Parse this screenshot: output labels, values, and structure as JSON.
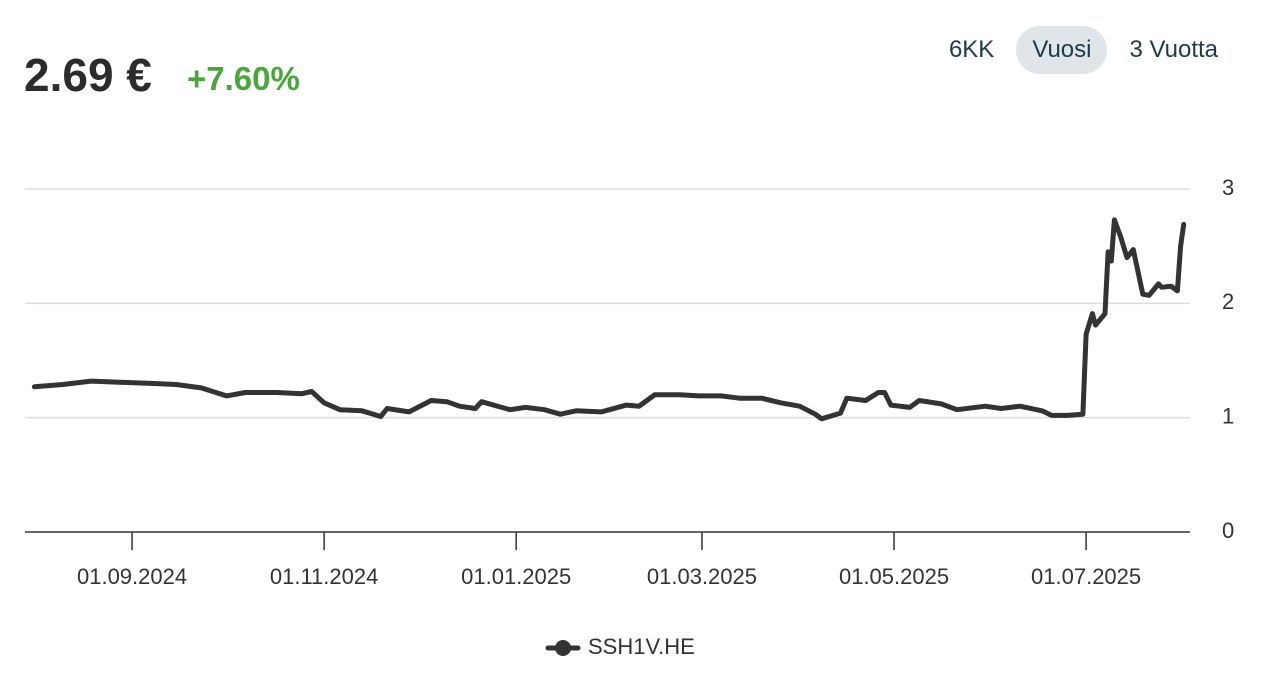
{
  "header": {
    "price": "2.69 €",
    "change": "+7.60%"
  },
  "range_buttons": {
    "labels": [
      "6KK",
      "Vuosi",
      "3 Vuotta"
    ],
    "active": 1
  },
  "chart_data": {
    "type": "line",
    "grid": true,
    "legend": "bottom",
    "xlim": [
      "2024-07-29",
      "2025-08-03"
    ],
    "xticks": [
      {
        "value": "2024-09-01",
        "label": "01.09.2024"
      },
      {
        "value": "2024-11-01",
        "label": "01.11.2024"
      },
      {
        "value": "2025-01-01",
        "label": "01.01.2025"
      },
      {
        "value": "2025-03-01",
        "label": "01.03.2025"
      },
      {
        "value": "2025-05-01",
        "label": "01.05.2025"
      },
      {
        "value": "2025-07-01",
        "label": "01.07.2025"
      }
    ],
    "ylim": [
      0,
      3
    ],
    "yticks": [
      0,
      1,
      2,
      3
    ],
    "x": [
      "2024-08-01",
      "2024-08-10",
      "2024-08-19",
      "2024-08-28",
      "2024-09-07",
      "2024-09-15",
      "2024-09-23",
      "2024-10-01",
      "2024-10-07",
      "2024-10-17",
      "2024-10-25",
      "2024-10-28",
      "2024-11-01",
      "2024-11-06",
      "2024-11-13",
      "2024-11-19",
      "2024-11-21",
      "2024-11-28",
      "2024-12-05",
      "2024-12-10",
      "2024-12-14",
      "2024-12-19",
      "2024-12-21",
      "2024-12-30",
      "2025-01-04",
      "2025-01-10",
      "2025-01-15",
      "2025-01-20",
      "2025-01-28",
      "2025-02-05",
      "2025-02-09",
      "2025-02-14",
      "2025-02-22",
      "2025-02-28",
      "2025-03-07",
      "2025-03-13",
      "2025-03-20",
      "2025-03-26",
      "2025-04-01",
      "2025-04-06",
      "2025-04-08",
      "2025-04-14",
      "2025-04-16",
      "2025-04-22",
      "2025-04-26",
      "2025-04-28",
      "2025-04-30",
      "2025-05-06",
      "2025-05-09",
      "2025-05-16",
      "2025-05-21",
      "2025-05-30",
      "2025-06-04",
      "2025-06-10",
      "2025-06-17",
      "2025-06-20",
      "2025-06-25",
      "2025-06-30",
      "2025-07-01",
      "2025-07-03",
      "2025-07-04",
      "2025-07-07",
      "2025-07-08",
      "2025-07-09",
      "2025-07-10",
      "2025-07-12",
      "2025-07-14",
      "2025-07-16",
      "2025-07-19",
      "2025-07-21",
      "2025-07-24",
      "2025-07-25",
      "2025-07-28",
      "2025-07-30",
      "2025-07-31",
      "2025-08-01"
    ],
    "series": [
      {
        "name": "SSH1V.HE",
        "color": "#333333",
        "values": [
          1.27,
          1.29,
          1.32,
          1.31,
          1.3,
          1.29,
          1.26,
          1.19,
          1.22,
          1.22,
          1.21,
          1.23,
          1.13,
          1.07,
          1.06,
          1.01,
          1.08,
          1.05,
          1.15,
          1.14,
          1.1,
          1.08,
          1.14,
          1.07,
          1.09,
          1.07,
          1.03,
          1.06,
          1.05,
          1.11,
          1.1,
          1.2,
          1.2,
          1.19,
          1.19,
          1.17,
          1.17,
          1.13,
          1.1,
          1.03,
          0.99,
          1.04,
          1.17,
          1.15,
          1.22,
          1.22,
          1.11,
          1.09,
          1.15,
          1.12,
          1.07,
          1.1,
          1.08,
          1.1,
          1.06,
          1.02,
          1.02,
          1.03,
          1.73,
          1.91,
          1.81,
          1.91,
          2.45,
          2.37,
          2.73,
          2.58,
          2.4,
          2.47,
          2.08,
          2.07,
          2.17,
          2.14,
          2.15,
          2.11,
          2.5,
          2.69
        ]
      }
    ]
  }
}
